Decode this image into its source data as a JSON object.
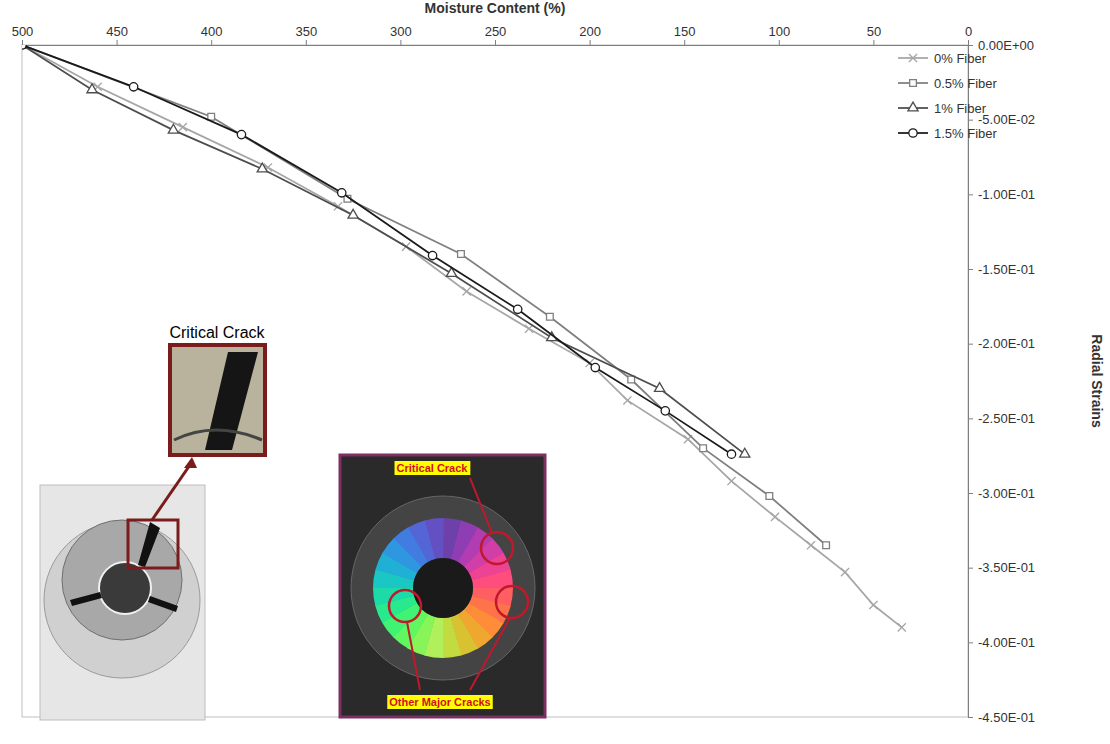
{
  "chart_data": {
    "type": "line",
    "x_label": "Moisture Content (%)",
    "y_label": "Radial Strains",
    "xlim": [
      500,
      0
    ],
    "xticks": [
      500,
      450,
      400,
      350,
      300,
      250,
      200,
      150,
      100,
      50,
      0
    ],
    "ylim": [
      0,
      -0.45
    ],
    "yticks": [
      {
        "value": 0,
        "label": "0.00E+00"
      },
      {
        "value": -0.05,
        "label": "-5.00E-02"
      },
      {
        "value": -0.1,
        "label": "-1.00E-01"
      },
      {
        "value": -0.15,
        "label": "-1.50E-01"
      },
      {
        "value": -0.2,
        "label": "-2.00E-01"
      },
      {
        "value": -0.25,
        "label": "-2.50E-01"
      },
      {
        "value": -0.3,
        "label": "-3.00E-01"
      },
      {
        "value": -0.35,
        "label": "-3.50E-01"
      },
      {
        "value": -0.4,
        "label": "-4.00E-01"
      },
      {
        "value": -0.45,
        "label": "-4.50E-01"
      }
    ],
    "grid": false,
    "legend": "top-right",
    "series": [
      {
        "name": "0% Fiber",
        "color": "#a6a6a6",
        "marker": "x",
        "x": [
          500,
          460,
          415,
          370,
          333,
          297,
          265,
          232,
          200,
          180,
          148,
          125,
          102,
          83,
          65,
          50,
          35
        ],
        "values": [
          0,
          -0.028,
          -0.055,
          -0.082,
          -0.108,
          -0.135,
          -0.165,
          -0.19,
          -0.213,
          -0.238,
          -0.264,
          -0.292,
          -0.316,
          -0.335,
          -0.353,
          -0.375,
          -0.39
        ]
      },
      {
        "name": "0.5% Fiber",
        "color": "#7f7f7f",
        "marker": "square",
        "x": [
          500,
          400,
          328,
          268,
          221,
          178,
          140,
          105,
          75
        ],
        "values": [
          0,
          -0.048,
          -0.103,
          -0.14,
          -0.182,
          -0.224,
          -0.27,
          -0.302,
          -0.335
        ]
      },
      {
        "name": "1% Fiber",
        "color": "#4d4d4d",
        "marker": "triangle",
        "x": [
          500,
          463,
          420,
          373,
          325,
          273,
          220,
          163,
          118
        ],
        "values": [
          0,
          -0.03,
          -0.057,
          -0.083,
          -0.114,
          -0.153,
          -0.196,
          -0.23,
          -0.274
        ]
      },
      {
        "name": "1.5% Fiber",
        "color": "#1a1a1a",
        "marker": "circle",
        "x": [
          500,
          441,
          384,
          331,
          283,
          238,
          197,
          160,
          125
        ],
        "values": [
          0,
          -0.028,
          -0.06,
          -0.099,
          -0.141,
          -0.177,
          -0.216,
          -0.245,
          -0.274
        ]
      }
    ],
    "annotations": [
      {
        "text": "Critical Crack"
      },
      {
        "text": "Critical Crack"
      },
      {
        "text": "Other Major Cracks"
      }
    ]
  }
}
